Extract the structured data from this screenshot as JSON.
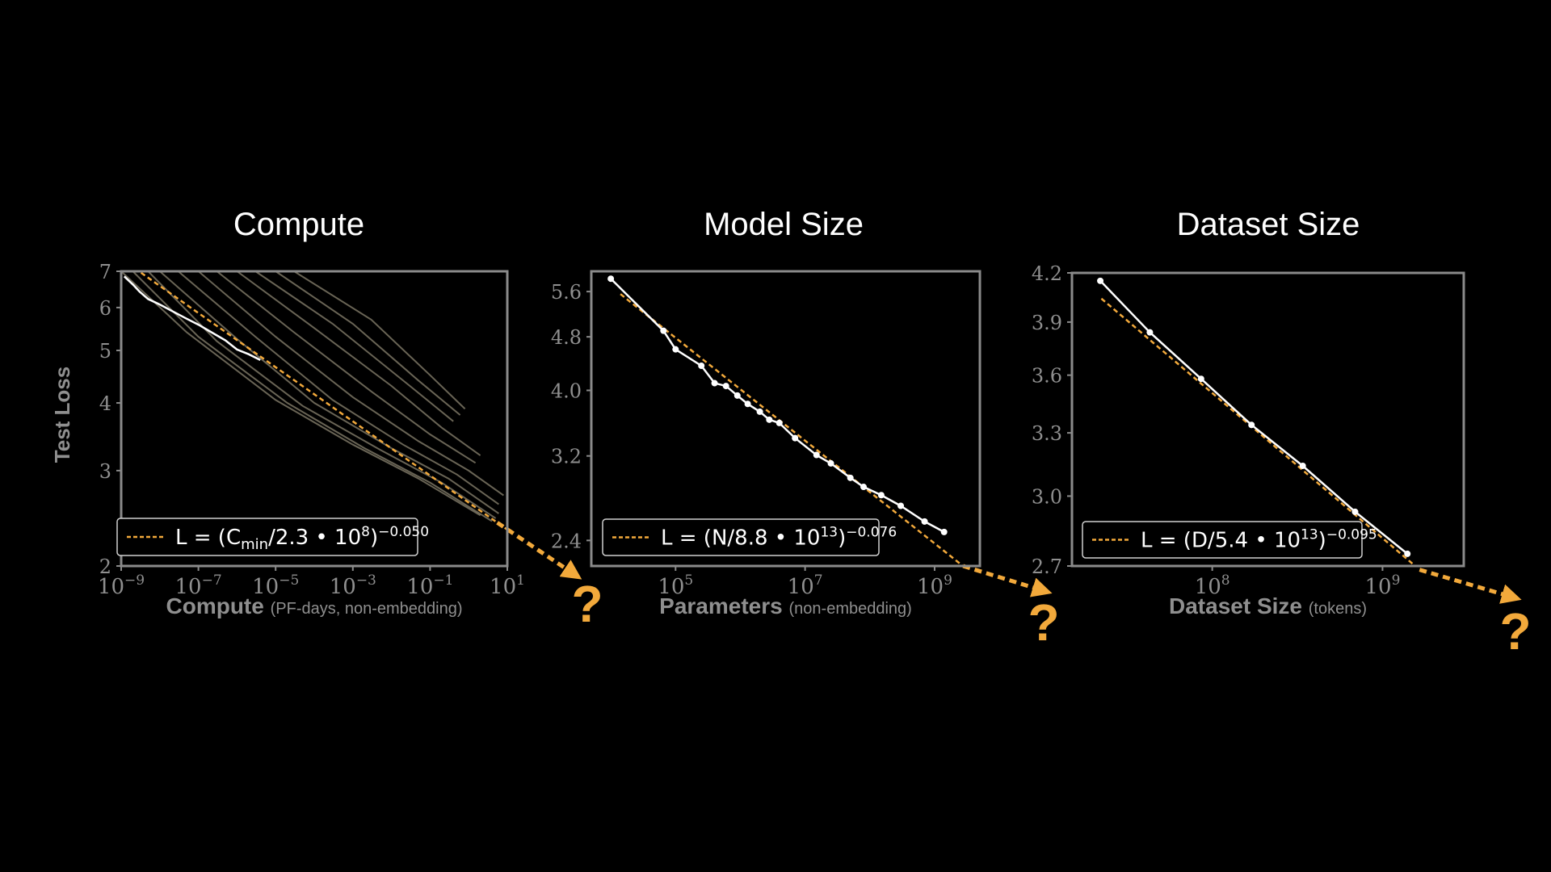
{
  "chart_data": [
    {
      "type": "line",
      "title": "Compute",
      "xlabel": "Compute",
      "xlabel_note": "(PF-days, non-embedding)",
      "ylabel": "Test Loss",
      "xscale": "log",
      "yscale": "log",
      "xlim": [
        1e-09,
        10
      ],
      "ylim": [
        2,
        7
      ],
      "xticks": [
        1e-09,
        1e-07,
        1e-05,
        0.001,
        0.1,
        10
      ],
      "xtick_labels": [
        {
          "base": "10",
          "exp": "−9"
        },
        {
          "base": "10",
          "exp": "−7"
        },
        {
          "base": "10",
          "exp": "−5"
        },
        {
          "base": "10",
          "exp": "−3"
        },
        {
          "base": "10",
          "exp": "−1"
        },
        {
          "base": "10",
          "exp": "1"
        }
      ],
      "yticks": [
        2,
        3,
        4,
        5,
        6,
        7
      ],
      "ytick_labels": [
        "2",
        "3",
        "4",
        "5",
        "6",
        "7"
      ],
      "legend": {
        "placement": "lower-left",
        "label_parts": [
          "L = (C",
          "min",
          "/2.3 • 10",
          "8",
          ")",
          "−0.050"
        ]
      },
      "fit": {
        "scale": 230000000.0,
        "exponent": -0.05,
        "x_range": [
          1e-09,
          40
        ]
      },
      "frontier": {
        "x": [
          1.2e-09,
          2e-09,
          3e-09,
          5e-09,
          1e-08,
          2e-08,
          5e-08,
          1e-07,
          2e-07,
          5e-07,
          1e-06,
          2e-06,
          4e-06
        ],
        "y": [
          6.85,
          6.62,
          6.42,
          6.22,
          6.08,
          5.92,
          5.72,
          5.58,
          5.42,
          5.22,
          5.02,
          4.92,
          4.8
        ]
      },
      "curves": [
        {
          "x": [
            1e-09,
            5e-08,
            1e-05,
            0.001,
            0.05,
            2
          ],
          "y": [
            7,
            5.4,
            4.05,
            3.35,
            2.9,
            2.48
          ]
        },
        {
          "x": [
            2e-09,
            1e-07,
            2e-05,
            0.002,
            0.1,
            4
          ],
          "y": [
            7,
            5.3,
            4.0,
            3.3,
            2.85,
            2.42
          ]
        },
        {
          "x": [
            5e-09,
            3e-07,
            5e-05,
            0.005,
            0.2,
            5
          ],
          "y": [
            7,
            5.2,
            3.95,
            3.28,
            2.85,
            2.45
          ]
        },
        {
          "x": [
            1e-08,
            1e-06,
            0.0001,
            0.01,
            0.3,
            6
          ],
          "y": [
            7,
            5.25,
            4.0,
            3.3,
            2.9,
            2.5
          ]
        },
        {
          "x": [
            3e-08,
            3e-06,
            0.0003,
            0.02,
            0.5,
            6
          ],
          "y": [
            7,
            5.3,
            4.05,
            3.35,
            2.95,
            2.6
          ]
        },
        {
          "x": [
            1e-07,
            1e-05,
            0.001,
            0.05,
            1,
            8
          ],
          "y": [
            7,
            5.3,
            4.1,
            3.4,
            3.0,
            2.7
          ]
        },
        {
          "x": [
            3e-07,
            3e-05,
            0.003,
            0.1,
            1.5
          ],
          "y": [
            7,
            5.4,
            4.2,
            3.5,
            3.1
          ]
        },
        {
          "x": [
            1e-06,
            0.0001,
            0.01,
            0.2,
            2
          ],
          "y": [
            7,
            5.5,
            4.3,
            3.6,
            3.2
          ]
        },
        {
          "x": [
            3e-06,
            0.0003,
            0.03,
            0.4
          ],
          "y": [
            7,
            5.6,
            4.3,
            3.7
          ]
        },
        {
          "x": [
            1e-05,
            0.001,
            0.05,
            0.6
          ],
          "y": [
            7,
            5.6,
            4.4,
            3.8
          ]
        },
        {
          "x": [
            3e-05,
            0.003,
            0.1,
            0.8
          ],
          "y": [
            7,
            5.7,
            4.5,
            3.9
          ]
        }
      ]
    },
    {
      "type": "line",
      "title": "Model Size",
      "xlabel": "Parameters",
      "xlabel_note": "(non-embedding)",
      "xscale": "log",
      "yscale": "log",
      "xlim": [
        5000.0,
        5000000000.0
      ],
      "ylim": [
        2.2,
        6.0
      ],
      "xticks": [
        100000.0,
        10000000.0,
        1000000000.0
      ],
      "xtick_labels": [
        {
          "base": "10",
          "exp": "5"
        },
        {
          "base": "10",
          "exp": "7"
        },
        {
          "base": "10",
          "exp": "9"
        }
      ],
      "yticks": [
        2.4,
        3.2,
        4.0,
        4.8,
        5.6
      ],
      "ytick_labels": [
        "2.4",
        "3.2",
        "4.0",
        "4.8",
        "5.6"
      ],
      "legend": {
        "placement": "lower-left",
        "label_parts": [
          "L = (N/8.8 • 10",
          "13",
          ")",
          "−0.076"
        ]
      },
      "fit": {
        "scale": 88000000000000.0,
        "exponent": -0.076,
        "x_range": [
          10000.0,
          30000000000.0
        ]
      },
      "points": {
        "x": [
          10000.0,
          65000.0,
          100000.0,
          250000.0,
          400000.0,
          600000.0,
          900000.0,
          1300000.0,
          2000000.0,
          2800000.0,
          4000000.0,
          7000000.0,
          15000000.0,
          25000000.0,
          50000000.0,
          80000000.0,
          150000000.0,
          300000000.0,
          700000000.0,
          1400000000.0
        ],
        "y": [
          5.85,
          4.9,
          4.6,
          4.35,
          4.1,
          4.06,
          3.93,
          3.82,
          3.72,
          3.62,
          3.58,
          3.4,
          3.21,
          3.12,
          2.97,
          2.88,
          2.8,
          2.7,
          2.56,
          2.47
        ]
      }
    },
    {
      "type": "line",
      "title": "Dataset Size",
      "xlabel": "Dataset Size",
      "xlabel_note": "(tokens)",
      "xscale": "log",
      "yscale": "log",
      "xlim": [
        15000000.0,
        3000000000.0
      ],
      "ylim": [
        2.7,
        4.2
      ],
      "xticks": [
        100000000.0,
        1000000000.0
      ],
      "xtick_labels": [
        {
          "base": "10",
          "exp": "8"
        },
        {
          "base": "10",
          "exp": "9"
        }
      ],
      "yticks": [
        2.7,
        3.0,
        3.3,
        3.6,
        3.9,
        4.2
      ],
      "ytick_labels": [
        "2.7",
        "3.0",
        "3.3",
        "3.6",
        "3.9",
        "4.2"
      ],
      "legend": {
        "placement": "lower-left",
        "label_parts": [
          "L = (D/5.4 • 10",
          "13",
          ")",
          "−0.095"
        ]
      },
      "fit": {
        "scale": 54000000000000.0,
        "exponent": -0.095,
        "x_range": [
          21000000.0,
          8000000000.0
        ]
      },
      "points": {
        "x": [
          22000000.0,
          43000000.0,
          86000000.0,
          170000000.0,
          340000000.0,
          690000000.0,
          1400000000.0
        ],
        "y": [
          4.15,
          3.84,
          3.58,
          3.34,
          3.14,
          2.93,
          2.75
        ]
      }
    }
  ],
  "annotations": {
    "question_mark": "?",
    "accent_color": "#f2a93b"
  }
}
